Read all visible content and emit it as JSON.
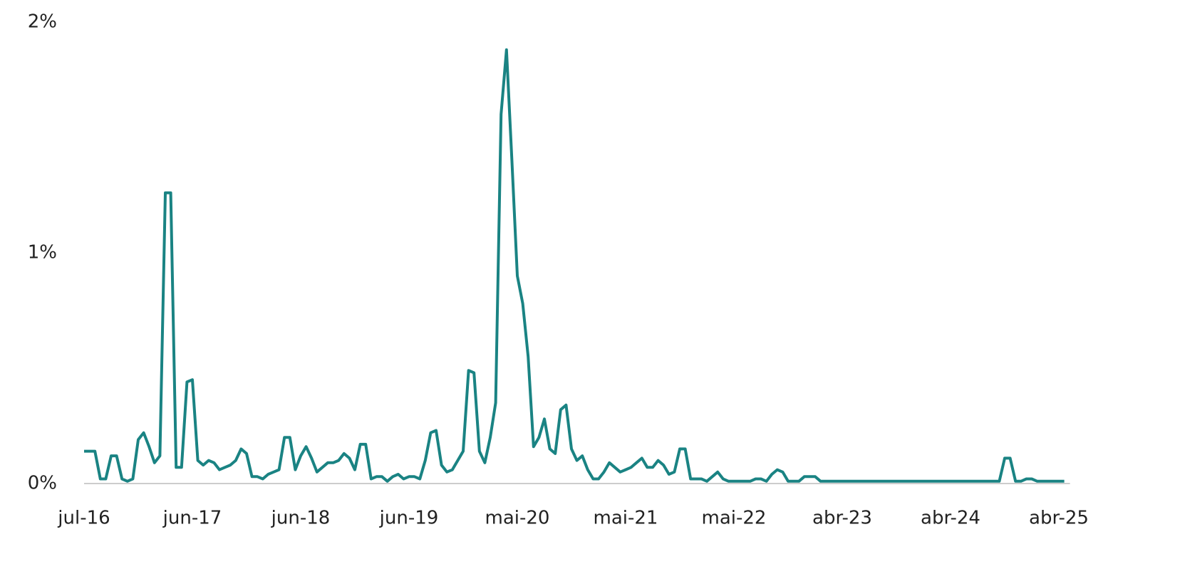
{
  "chart_data": {
    "type": "line",
    "categories": [
      "jul-16",
      null,
      null,
      null,
      null,
      null,
      null,
      null,
      null,
      null,
      null,
      null,
      null,
      null,
      null,
      null,
      null,
      null,
      null,
      null,
      "jun-17",
      null,
      null,
      null,
      null,
      null,
      null,
      null,
      null,
      null,
      null,
      null,
      null,
      null,
      null,
      null,
      null,
      null,
      null,
      null,
      "jun-18",
      null,
      null,
      null,
      null,
      null,
      null,
      null,
      null,
      null,
      null,
      null,
      null,
      null,
      null,
      null,
      null,
      null,
      null,
      null,
      "jun-19",
      null,
      null,
      null,
      null,
      null,
      null,
      null,
      null,
      null,
      null,
      null,
      null,
      null,
      null,
      null,
      null,
      null,
      null,
      null,
      "mai-20",
      null,
      null,
      null,
      null,
      null,
      null,
      null,
      null,
      null,
      null,
      null,
      null,
      null,
      null,
      null,
      null,
      null,
      null,
      null,
      "mai-21",
      null,
      null,
      null,
      null,
      null,
      null,
      null,
      null,
      null,
      null,
      null,
      null,
      null,
      null,
      null,
      null,
      null,
      null,
      null,
      "mai-22",
      null,
      null,
      null,
      null,
      null,
      null,
      null,
      null,
      null,
      null,
      null,
      null,
      null,
      null,
      null,
      null,
      null,
      null,
      null,
      "abr-23",
      null,
      null,
      null,
      null,
      null,
      null,
      null,
      null,
      null,
      null,
      null,
      null,
      null,
      null,
      null,
      null,
      null,
      null,
      null,
      "abr-24",
      null,
      null,
      null,
      null,
      null,
      null,
      null,
      null,
      null,
      null,
      null,
      null,
      null,
      null,
      null,
      null,
      null,
      null,
      null,
      "abr-25",
      null
    ],
    "values": [
      0.14,
      0.14,
      0.14,
      0.02,
      0.02,
      0.12,
      0.12,
      0.02,
      0.01,
      0.02,
      0.19,
      0.22,
      0.16,
      0.09,
      0.12,
      1.26,
      1.26,
      0.07,
      0.07,
      0.44,
      0.45,
      0.1,
      0.08,
      0.1,
      0.09,
      0.06,
      0.07,
      0.08,
      0.1,
      0.15,
      0.13,
      0.03,
      0.03,
      0.02,
      0.04,
      0.05,
      0.06,
      0.2,
      0.2,
      0.06,
      0.12,
      0.16,
      0.11,
      0.05,
      0.07,
      0.09,
      0.09,
      0.1,
      0.13,
      0.11,
      0.06,
      0.17,
      0.17,
      0.02,
      0.03,
      0.03,
      0.01,
      0.03,
      0.04,
      0.02,
      0.03,
      0.03,
      0.02,
      0.1,
      0.22,
      0.23,
      0.08,
      0.05,
      0.06,
      0.1,
      0.14,
      0.49,
      0.48,
      0.14,
      0.09,
      0.2,
      0.35,
      1.6,
      1.88,
      1.4,
      0.9,
      0.78,
      0.55,
      0.16,
      0.2,
      0.28,
      0.15,
      0.13,
      0.32,
      0.34,
      0.15,
      0.1,
      0.12,
      0.06,
      0.02,
      0.02,
      0.05,
      0.09,
      0.07,
      0.05,
      0.06,
      0.07,
      0.09,
      0.11,
      0.07,
      0.07,
      0.1,
      0.08,
      0.04,
      0.05,
      0.15,
      0.15,
      0.02,
      0.02,
      0.02,
      0.01,
      0.03,
      0.05,
      0.02,
      0.01,
      0.01,
      0.01,
      0.01,
      0.01,
      0.02,
      0.02,
      0.01,
      0.04,
      0.06,
      0.05,
      0.01,
      0.01,
      0.01,
      0.03,
      0.03,
      0.03,
      0.01,
      0.01,
      0.01,
      0.01,
      0.01,
      0.01,
      0.01,
      0.01,
      0.01,
      0.01,
      0.01,
      0.01,
      0.01,
      0.01,
      0.01,
      0.01,
      0.01,
      0.01,
      0.01,
      0.01,
      0.01,
      0.01,
      0.01,
      0.01,
      0.01,
      0.01,
      0.01,
      0.01,
      0.01,
      0.01,
      0.01,
      0.01,
      0.01,
      0.01,
      0.11,
      0.11,
      0.01,
      0.01,
      0.02,
      0.02,
      0.01,
      0.01,
      0.01,
      0.01,
      0.01,
      0.01
    ],
    "color": "#1a8383",
    "ylim": [
      0,
      2
    ],
    "yticks": [
      {
        "value": 0,
        "label": "0%"
      },
      {
        "value": 1,
        "label": "1%"
      },
      {
        "value": 2,
        "label": "2%"
      }
    ]
  }
}
